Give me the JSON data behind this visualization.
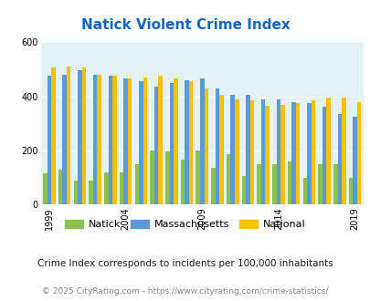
{
  "title": "Natick Violent Crime Index",
  "subtitle": "Crime Index corresponds to incidents per 100,000 inhabitants",
  "footer": "© 2025 CityRating.com - https://www.cityrating.com/crime-statistics/",
  "years": [
    1999,
    2000,
    2001,
    2002,
    2003,
    2004,
    2005,
    2006,
    2007,
    2008,
    2009,
    2010,
    2011,
    2012,
    2013,
    2014,
    2015,
    2016,
    2017,
    2018,
    2019
  ],
  "natick": [
    115,
    130,
    90,
    90,
    120,
    120,
    150,
    200,
    195,
    165,
    200,
    135,
    185,
    105,
    150,
    150,
    160,
    100,
    150,
    150,
    100
  ],
  "massachusetts": [
    475,
    480,
    495,
    480,
    475,
    465,
    455,
    435,
    450,
    460,
    465,
    430,
    405,
    405,
    390,
    390,
    380,
    375,
    360,
    335,
    325
  ],
  "national": [
    505,
    510,
    505,
    480,
    475,
    465,
    470,
    475,
    465,
    455,
    430,
    405,
    390,
    385,
    365,
    370,
    375,
    385,
    395,
    395,
    380
  ],
  "natick_color": "#8bc34a",
  "massachusetts_color": "#5b9bd5",
  "national_color": "#ffc000",
  "bg_color": "#e4f1f5",
  "ylim": [
    0,
    600
  ],
  "yticks": [
    0,
    200,
    400,
    600
  ],
  "xtick_years": [
    1999,
    2004,
    2009,
    2014,
    2019
  ],
  "title_color": "#1565c0",
  "subtitle_color": "#1a1a2e",
  "footer_color": "#888888"
}
